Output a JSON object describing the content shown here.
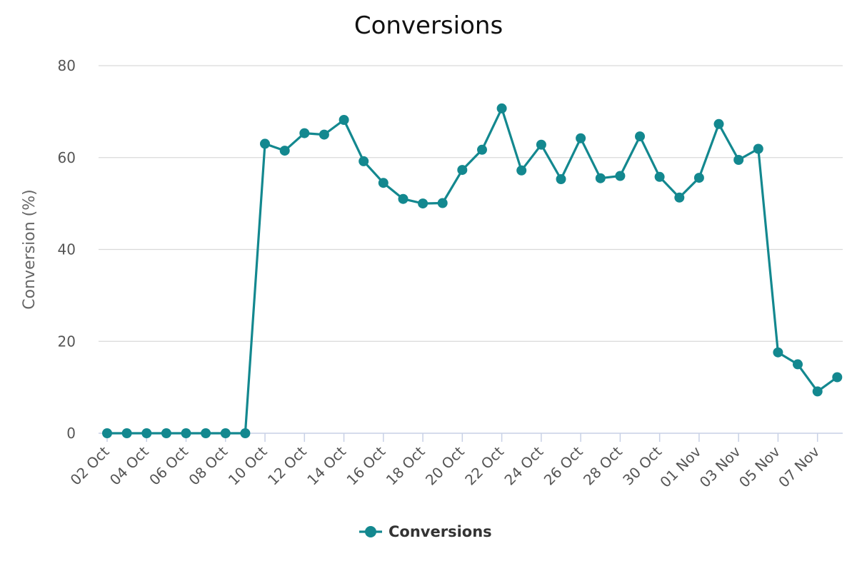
{
  "chart_data": {
    "type": "line",
    "title": "Conversions",
    "xlabel": "",
    "ylabel": "Conversion (%)",
    "ylim": [
      0,
      80
    ],
    "yticks": [
      0,
      20,
      40,
      60,
      80
    ],
    "grid": true,
    "legend_position": "bottom-center",
    "x_tick_labels": [
      "02 Oct",
      "04 Oct",
      "06 Oct",
      "08 Oct",
      "10 Oct",
      "12 Oct",
      "14 Oct",
      "16 Oct",
      "18 Oct",
      "20 Oct",
      "22 Oct",
      "24 Oct",
      "26 Oct",
      "28 Oct",
      "30 Oct",
      "01 Nov",
      "03 Nov",
      "05 Nov",
      "07 Nov"
    ],
    "x": [
      "02 Oct",
      "03 Oct",
      "04 Oct",
      "05 Oct",
      "06 Oct",
      "07 Oct",
      "08 Oct",
      "09 Oct",
      "10 Oct",
      "11 Oct",
      "12 Oct",
      "13 Oct",
      "14 Oct",
      "15 Oct",
      "16 Oct",
      "17 Oct",
      "18 Oct",
      "19 Oct",
      "20 Oct",
      "21 Oct",
      "22 Oct",
      "23 Oct",
      "24 Oct",
      "25 Oct",
      "26 Oct",
      "27 Oct",
      "28 Oct",
      "29 Oct",
      "30 Oct",
      "31 Oct",
      "01 Nov",
      "02 Nov",
      "03 Nov",
      "04 Nov",
      "05 Nov",
      "06 Nov",
      "07 Nov",
      "08 Nov"
    ],
    "series": [
      {
        "name": "Conversions",
        "color": "#13888f",
        "values": [
          0,
          0,
          0,
          0,
          0,
          0,
          0,
          0,
          63,
          61.5,
          65.3,
          65,
          68.2,
          59.2,
          54.5,
          51,
          50,
          50.1,
          57.3,
          61.7,
          70.7,
          57.2,
          62.8,
          55.3,
          64.2,
          55.5,
          56,
          64.6,
          55.8,
          51.3,
          55.6,
          67.3,
          59.5,
          61.9,
          17.6,
          15,
          9.1,
          12.2
        ]
      }
    ]
  }
}
